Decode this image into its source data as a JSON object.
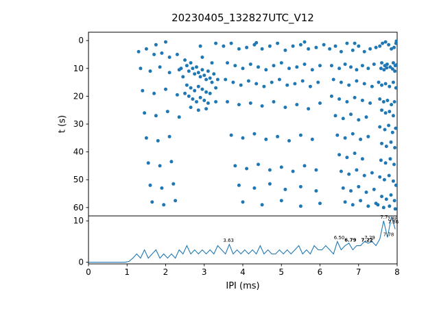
{
  "style": {
    "accent": "#1f77b4",
    "spine": "#000000",
    "annotation": "#444444"
  },
  "chart_data": [
    {
      "type": "scatter",
      "title": "20230405_132827UTC_V12",
      "xlabel": "",
      "ylabel": "t (s)",
      "xlim": [
        0,
        8
      ],
      "ylim": [
        -3,
        63
      ],
      "y_inverted": true,
      "yticks": [
        0,
        10,
        20,
        30,
        40,
        50,
        60
      ],
      "color": "#1f77b4",
      "points": [
        [
          7.55,
          2
        ],
        [
          7.62,
          1
        ],
        [
          7.7,
          0.5
        ],
        [
          7.78,
          1.5
        ],
        [
          7.85,
          3
        ],
        [
          7.92,
          2.5
        ],
        [
          7.97,
          1
        ],
        [
          7.6,
          8
        ],
        [
          7.68,
          9
        ],
        [
          7.74,
          8.5
        ],
        [
          7.82,
          9.5
        ],
        [
          7.9,
          8
        ],
        [
          7.95,
          9
        ],
        [
          7.99,
          8.7
        ],
        [
          7.58,
          10
        ],
        [
          7.66,
          10.5
        ],
        [
          7.73,
          9.8
        ],
        [
          7.88,
          10.2
        ],
        [
          7.94,
          11
        ],
        [
          7.52,
          15
        ],
        [
          7.6,
          16
        ],
        [
          7.7,
          15.5
        ],
        [
          7.8,
          16.5
        ],
        [
          7.9,
          15
        ],
        [
          7.97,
          17
        ],
        [
          7.55,
          21
        ],
        [
          7.65,
          22
        ],
        [
          7.75,
          21.5
        ],
        [
          7.85,
          23
        ],
        [
          7.93,
          22
        ],
        [
          7.6,
          25
        ],
        [
          7.7,
          26
        ],
        [
          7.8,
          25.5
        ],
        [
          7.9,
          27
        ],
        [
          7.55,
          31
        ],
        [
          7.68,
          32
        ],
        [
          7.78,
          30.5
        ],
        [
          7.88,
          33
        ],
        [
          7.96,
          31.5
        ],
        [
          7.6,
          37
        ],
        [
          7.72,
          38
        ],
        [
          7.84,
          36.5
        ],
        [
          7.94,
          38.5
        ],
        [
          7.58,
          43
        ],
        [
          7.7,
          44
        ],
        [
          7.82,
          42.5
        ],
        [
          7.92,
          44.5
        ],
        [
          7.55,
          49
        ],
        [
          7.67,
          50
        ],
        [
          7.79,
          48.5
        ],
        [
          7.9,
          50.5
        ],
        [
          7.97,
          52
        ],
        [
          7.6,
          56
        ],
        [
          7.72,
          57
        ],
        [
          7.84,
          55.5
        ],
        [
          7.93,
          57.5
        ],
        [
          7.5,
          59
        ],
        [
          7.65,
          60
        ],
        [
          7.8,
          59.5
        ],
        [
          7.95,
          60.5
        ],
        [
          6.25,
          3
        ],
        [
          6.4,
          2
        ],
        [
          6.55,
          4
        ],
        [
          6.7,
          1
        ],
        [
          6.85,
          3.5
        ],
        [
          7.0,
          2
        ],
        [
          7.15,
          4
        ],
        [
          7.3,
          3
        ],
        [
          7.45,
          2.5
        ],
        [
          6.3,
          9
        ],
        [
          6.5,
          10
        ],
        [
          6.65,
          8.5
        ],
        [
          6.8,
          9.5
        ],
        [
          6.95,
          10.5
        ],
        [
          7.1,
          9
        ],
        [
          7.25,
          10
        ],
        [
          7.4,
          8.5
        ],
        [
          6.35,
          14
        ],
        [
          6.55,
          15
        ],
        [
          6.75,
          16
        ],
        [
          6.95,
          14.5
        ],
        [
          7.15,
          15.5
        ],
        [
          7.35,
          16.5
        ],
        [
          6.3,
          20
        ],
        [
          6.5,
          21
        ],
        [
          6.7,
          22
        ],
        [
          6.9,
          20.5
        ],
        [
          7.1,
          21.5
        ],
        [
          7.3,
          22.5
        ],
        [
          6.4,
          27
        ],
        [
          6.6,
          28
        ],
        [
          6.8,
          26.5
        ],
        [
          7.0,
          28.5
        ],
        [
          7.2,
          27.5
        ],
        [
          6.45,
          34
        ],
        [
          6.65,
          35
        ],
        [
          6.85,
          33.5
        ],
        [
          7.05,
          35.5
        ],
        [
          7.25,
          34.5
        ],
        [
          6.5,
          41
        ],
        [
          6.7,
          42
        ],
        [
          6.9,
          40.5
        ],
        [
          7.1,
          42.5
        ],
        [
          6.55,
          47
        ],
        [
          6.75,
          48
        ],
        [
          6.95,
          46.5
        ],
        [
          7.15,
          48.5
        ],
        [
          7.35,
          47.5
        ],
        [
          6.6,
          53
        ],
        [
          6.8,
          54
        ],
        [
          7.0,
          52.5
        ],
        [
          7.2,
          54.5
        ],
        [
          7.4,
          53.5
        ],
        [
          6.65,
          58
        ],
        [
          6.85,
          59
        ],
        [
          7.05,
          57.5
        ],
        [
          7.25,
          59.5
        ],
        [
          7.45,
          58.5
        ],
        [
          2.5,
          7
        ],
        [
          2.55,
          9
        ],
        [
          2.6,
          11
        ],
        [
          2.65,
          8
        ],
        [
          2.7,
          10
        ],
        [
          2.75,
          12
        ],
        [
          2.8,
          9.5
        ],
        [
          2.85,
          11.5
        ],
        [
          2.9,
          13
        ],
        [
          2.95,
          10.5
        ],
        [
          3.0,
          12.5
        ],
        [
          3.05,
          14
        ],
        [
          3.1,
          11
        ],
        [
          3.15,
          13.5
        ],
        [
          3.2,
          15
        ],
        [
          2.55,
          16
        ],
        [
          2.65,
          17
        ],
        [
          2.75,
          18
        ],
        [
          2.85,
          16.5
        ],
        [
          2.95,
          17.5
        ],
        [
          3.05,
          18.5
        ],
        [
          3.15,
          19
        ],
        [
          2.6,
          20
        ],
        [
          2.7,
          21
        ],
        [
          2.8,
          22
        ],
        [
          2.9,
          20.5
        ],
        [
          3.0,
          21.5
        ],
        [
          3.1,
          22.5
        ],
        [
          2.65,
          24
        ],
        [
          2.85,
          25
        ],
        [
          3.05,
          24.5
        ],
        [
          2.45,
          13
        ],
        [
          2.5,
          19
        ],
        [
          3.25,
          12
        ],
        [
          3.3,
          17
        ],
        [
          3.35,
          14
        ],
        [
          2.4,
          10
        ],
        [
          3.2,
          8
        ],
        [
          3.3,
          22
        ],
        [
          2.95,
          6
        ],
        [
          3.5,
          2
        ],
        [
          3.7,
          1
        ],
        [
          3.9,
          3
        ],
        [
          4.1,
          2.5
        ],
        [
          4.3,
          1.5
        ],
        [
          4.5,
          3
        ],
        [
          4.7,
          2
        ],
        [
          4.9,
          1
        ],
        [
          5.1,
          3.5
        ],
        [
          5.3,
          2
        ],
        [
          5.5,
          1.5
        ],
        [
          5.7,
          3
        ],
        [
          5.9,
          2.5
        ],
        [
          6.1,
          1.5
        ],
        [
          3.6,
          8
        ],
        [
          3.8,
          9
        ],
        [
          4.0,
          10
        ],
        [
          4.2,
          8.5
        ],
        [
          4.4,
          9.5
        ],
        [
          4.6,
          10.5
        ],
        [
          4.8,
          9
        ],
        [
          5.0,
          8
        ],
        [
          5.2,
          10
        ],
        [
          5.4,
          9.5
        ],
        [
          5.6,
          8.5
        ],
        [
          5.8,
          10.5
        ],
        [
          6.0,
          9
        ],
        [
          3.55,
          14
        ],
        [
          3.75,
          15
        ],
        [
          3.95,
          16
        ],
        [
          4.15,
          14.5
        ],
        [
          4.35,
          15.5
        ],
        [
          4.55,
          16.5
        ],
        [
          4.75,
          15
        ],
        [
          4.95,
          14
        ],
        [
          5.15,
          16
        ],
        [
          5.35,
          15.5
        ],
        [
          5.55,
          14.5
        ],
        [
          5.75,
          16.5
        ],
        [
          5.95,
          15
        ],
        [
          3.6,
          22
        ],
        [
          3.9,
          23
        ],
        [
          4.2,
          22.5
        ],
        [
          4.5,
          23.5
        ],
        [
          4.8,
          22
        ],
        [
          5.1,
          24
        ],
        [
          5.4,
          23
        ],
        [
          5.7,
          24.5
        ],
        [
          6.0,
          22.5
        ],
        [
          3.7,
          34
        ],
        [
          4.0,
          35
        ],
        [
          4.3,
          33.5
        ],
        [
          4.6,
          35.5
        ],
        [
          4.9,
          34.5
        ],
        [
          5.2,
          36
        ],
        [
          5.5,
          34
        ],
        [
          5.8,
          35.5
        ],
        [
          3.8,
          45
        ],
        [
          4.1,
          46
        ],
        [
          4.4,
          44.5
        ],
        [
          4.7,
          46.5
        ],
        [
          5.0,
          45.5
        ],
        [
          5.3,
          47
        ],
        [
          5.6,
          45
        ],
        [
          5.9,
          46.5
        ],
        [
          3.9,
          52
        ],
        [
          4.3,
          53
        ],
        [
          4.7,
          51.5
        ],
        [
          5.1,
          53.5
        ],
        [
          5.5,
          52.5
        ],
        [
          5.9,
          54
        ],
        [
          4.0,
          58
        ],
        [
          4.5,
          59
        ],
        [
          5.0,
          57.5
        ],
        [
          5.5,
          59.5
        ],
        [
          6.0,
          58.5
        ],
        [
          1.3,
          4
        ],
        [
          1.5,
          3
        ],
        [
          1.7,
          5
        ],
        [
          1.9,
          4.5
        ],
        [
          2.1,
          6
        ],
        [
          2.3,
          5
        ],
        [
          1.35,
          10
        ],
        [
          1.6,
          11
        ],
        [
          1.85,
          9.5
        ],
        [
          2.1,
          11.5
        ],
        [
          2.35,
          10.5
        ],
        [
          1.4,
          18
        ],
        [
          1.7,
          19
        ],
        [
          2.0,
          17.5
        ],
        [
          2.3,
          19.5
        ],
        [
          1.45,
          26
        ],
        [
          1.75,
          27
        ],
        [
          2.05,
          25.5
        ],
        [
          2.35,
          27.5
        ],
        [
          1.5,
          35
        ],
        [
          1.8,
          36
        ],
        [
          2.1,
          34.5
        ],
        [
          1.55,
          44
        ],
        [
          1.85,
          45
        ],
        [
          2.15,
          43.5
        ],
        [
          1.6,
          52
        ],
        [
          1.9,
          53
        ],
        [
          2.2,
          51.5
        ],
        [
          1.65,
          58
        ],
        [
          1.95,
          59
        ],
        [
          2.25,
          57.5
        ],
        [
          2.0,
          0.5
        ],
        [
          3.3,
          1
        ],
        [
          4.35,
          0.8
        ],
        [
          5.6,
          0.5
        ],
        [
          6.9,
          1
        ],
        [
          7.98,
          0.2
        ],
        [
          2.9,
          2
        ],
        [
          1.75,
          1.5
        ]
      ]
    },
    {
      "type": "line",
      "title": "",
      "xlabel": "IPI (ms)",
      "ylabel": "",
      "xlim": [
        0,
        8
      ],
      "ylim": [
        -0.4,
        11.2
      ],
      "xticks": [
        0,
        1,
        2,
        3,
        4,
        5,
        6,
        7,
        8
      ],
      "yticks": [
        0,
        10
      ],
      "color": "#1f77b4",
      "bin_start": 0.05,
      "bin_width": 0.1,
      "values": [
        0,
        0,
        0,
        0,
        0,
        0,
        0,
        0,
        0,
        0,
        0.2,
        1,
        2,
        1,
        3,
        1,
        2,
        3,
        1,
        2,
        1,
        2,
        1,
        3,
        2,
        4,
        2,
        3,
        2,
        3,
        2,
        3,
        2,
        4,
        3,
        2,
        4.3,
        2,
        3,
        2,
        3,
        2,
        3,
        2,
        4,
        2,
        3,
        2,
        2,
        3,
        2,
        3,
        2,
        3,
        4,
        2,
        3,
        2,
        4,
        3,
        3,
        4,
        3,
        2,
        5,
        3,
        4,
        4.6,
        3,
        4,
        4,
        5,
        4.6,
        5,
        4,
        5.6,
        10,
        6,
        11,
        8
      ],
      "annotations": [
        {
          "label": "3.63",
          "x": 3.63,
          "y": 4.9,
          "bold": false
        },
        {
          "label": "6.50",
          "x": 6.5,
          "y": 5.6,
          "bold": false
        },
        {
          "label": "6.79",
          "x": 6.79,
          "y": 5.0,
          "bold": true
        },
        {
          "label": "7.22",
          "x": 7.22,
          "y": 5.0,
          "bold": true
        },
        {
          "label": "7.29",
          "x": 7.29,
          "y": 5.6,
          "bold": false
        },
        {
          "label": "7.7",
          "x": 7.66,
          "y": 10.5,
          "bold": false
        },
        {
          "label": "7.88",
          "x": 7.88,
          "y": 10.1,
          "bold": false
        },
        {
          "label": "7.86",
          "x": 7.9,
          "y": 9.4,
          "bold": false
        },
        {
          "label": "7.78",
          "x": 7.78,
          "y": 6.3,
          "bold": false
        }
      ]
    }
  ]
}
